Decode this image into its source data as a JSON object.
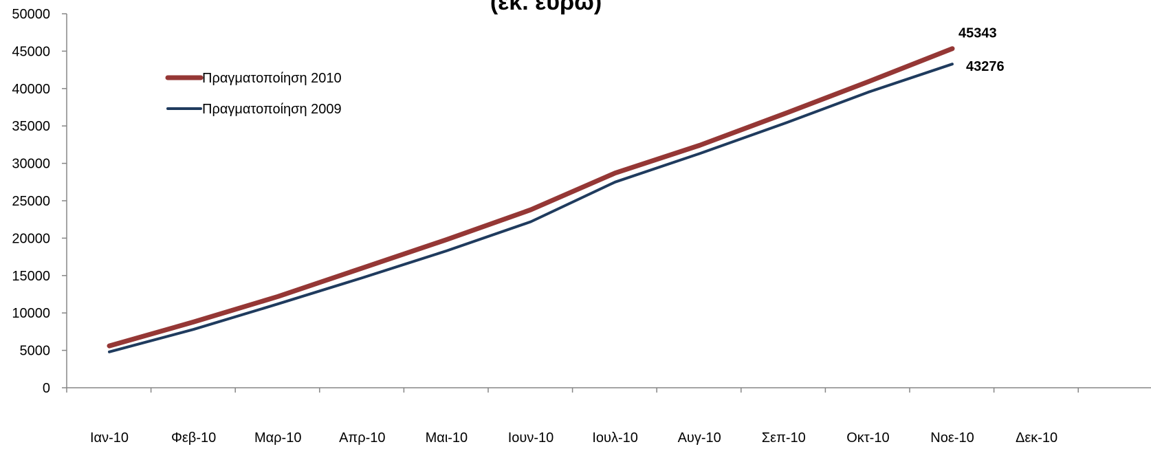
{
  "chart_data": {
    "type": "line",
    "title": "(εκ. ευρώ)",
    "categories": [
      "Ιαν-10",
      "Φεβ-10",
      "Μαρ-10",
      "Απρ-10",
      "Μαι-10",
      "Ιουν-10",
      "Ιουλ-10",
      "Αυγ-10",
      "Σεπ-10",
      "Οκτ-10",
      "Νοε-10",
      "Δεκ-10"
    ],
    "ylim": [
      0,
      50000
    ],
    "yticks": [
      "0",
      "5000",
      "10000",
      "15000",
      "20000",
      "25000",
      "30000",
      "35000",
      "40000",
      "45000",
      "50000"
    ],
    "grid": false,
    "legend_position": "top-left",
    "series": [
      {
        "name": "Πραγματοποίηση 2010",
        "color": "#953735",
        "values": [
          5600,
          8800,
          12200,
          16000,
          19800,
          23800,
          28700,
          32400,
          36600,
          40900,
          45343,
          null
        ],
        "end_label": "45343"
      },
      {
        "name": "Πραγματοποίηση 2009",
        "color": "#1F3B5E",
        "values": [
          4800,
          7800,
          11200,
          14700,
          18300,
          22200,
          27500,
          31300,
          35300,
          39500,
          43276,
          null
        ],
        "end_label": "43276"
      }
    ]
  }
}
